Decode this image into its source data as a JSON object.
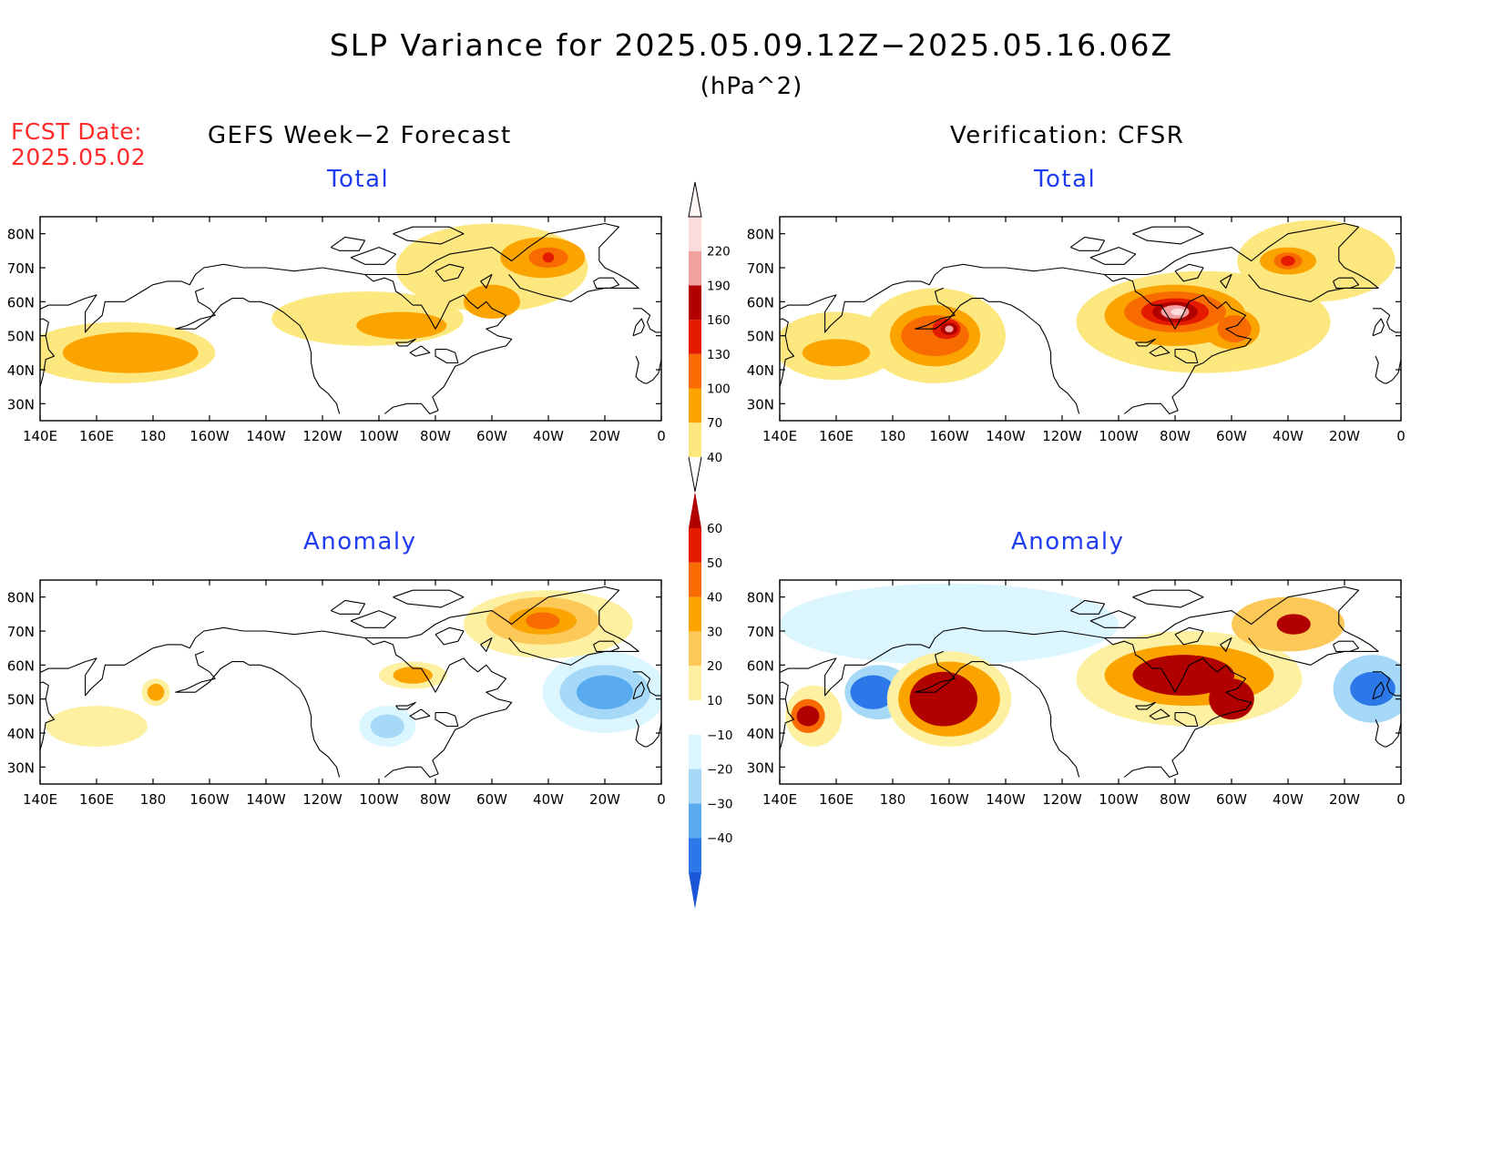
{
  "title": "SLP Variance for 2025.05.09.12Z−2025.05.16.06Z",
  "units": "(hPa^2)",
  "fcst_label": "FCST Date:",
  "fcst_date": "2025.05.02",
  "left_column_title": "GEFS Week−2 Forecast",
  "right_column_title": "Verification: CFSR",
  "panels": [
    {
      "id": "gefs-total",
      "title": "Total"
    },
    {
      "id": "cfsr-total",
      "title": "Total"
    },
    {
      "id": "gefs-anomaly",
      "title": "Anomaly"
    },
    {
      "id": "cfsr-anomaly",
      "title": "Anomaly"
    }
  ],
  "lon_ticks": [
    "140E",
    "160E",
    "180",
    "160W",
    "140W",
    "120W",
    "100W",
    "80W",
    "60W",
    "40W",
    "20W",
    "0"
  ],
  "lat_ticks": [
    "80N",
    "70N",
    "60N",
    "50N",
    "40N",
    "30N"
  ],
  "lon_values": [
    140,
    160,
    180,
    200,
    220,
    240,
    260,
    280,
    300,
    320,
    340,
    360
  ],
  "lat_values": [
    80,
    70,
    60,
    50,
    40,
    30
  ],
  "lon_range": [
    140,
    360
  ],
  "lat_range": [
    25,
    85
  ],
  "total_colorbar": {
    "labels": [
      "40",
      "70",
      "100",
      "130",
      "160",
      "190",
      "220"
    ],
    "colors": [
      "#fde880",
      "#fba400",
      "#f76b00",
      "#e51b00",
      "#b10000",
      "#f2a0a0",
      "#fbdcdc"
    ]
  },
  "anomaly_colorbar": {
    "labels": [
      "60",
      "50",
      "40",
      "30",
      "20",
      "10",
      "−10",
      "−20",
      "−30",
      "−40"
    ],
    "colors": [
      "#b10000",
      "#e51b00",
      "#f76b00",
      "#fba400",
      "#fcc858",
      "#fdf0a0",
      "#ffffff",
      "#dcf6ff",
      "#a6d9f8",
      "#5aaaf0",
      "#2d78e8",
      "#1a56d8"
    ]
  },
  "fields": {
    "gefs-total": [
      {
        "lon": 168,
        "lat": 45,
        "rx": 34,
        "ry": 9,
        "level": 0
      },
      {
        "lon": 172,
        "lat": 45,
        "rx": 24,
        "ry": 6,
        "level": 1
      },
      {
        "lon": 256,
        "lat": 55,
        "rx": 34,
        "ry": 8,
        "level": 0
      },
      {
        "lon": 300,
        "lat": 70,
        "rx": 34,
        "ry": 13,
        "level": 0
      },
      {
        "lon": 268,
        "lat": 53,
        "rx": 16,
        "ry": 4,
        "level": 1
      },
      {
        "lon": 300,
        "lat": 60,
        "rx": 10,
        "ry": 5,
        "level": 1
      },
      {
        "lon": 318,
        "lat": 73,
        "rx": 15,
        "ry": 6,
        "level": 1
      },
      {
        "lon": 320,
        "lat": 73,
        "rx": 7,
        "ry": 3,
        "level": 2
      },
      {
        "lon": 320,
        "lat": 73,
        "rx": 2,
        "ry": 1.5,
        "level": 3
      }
    ],
    "cfsr-total": [
      {
        "lon": 160,
        "lat": 47,
        "rx": 22,
        "ry": 10,
        "level": 0
      },
      {
        "lon": 195,
        "lat": 50,
        "rx": 25,
        "ry": 14,
        "level": 0
      },
      {
        "lon": 290,
        "lat": 54,
        "rx": 45,
        "ry": 15,
        "level": 0
      },
      {
        "lon": 330,
        "lat": 72,
        "rx": 28,
        "ry": 12,
        "level": 0
      },
      {
        "lon": 160,
        "lat": 45,
        "rx": 12,
        "ry": 4,
        "level": 1
      },
      {
        "lon": 195,
        "lat": 50,
        "rx": 16,
        "ry": 9,
        "level": 1
      },
      {
        "lon": 280,
        "lat": 56,
        "rx": 25,
        "ry": 9,
        "level": 1
      },
      {
        "lon": 300,
        "lat": 52,
        "rx": 10,
        "ry": 6,
        "level": 1
      },
      {
        "lon": 320,
        "lat": 72,
        "rx": 10,
        "ry": 4,
        "level": 1
      },
      {
        "lon": 195,
        "lat": 50,
        "rx": 12,
        "ry": 6,
        "level": 2
      },
      {
        "lon": 280,
        "lat": 57,
        "rx": 18,
        "ry": 6,
        "level": 2
      },
      {
        "lon": 301,
        "lat": 52,
        "rx": 6,
        "ry": 4,
        "level": 2
      },
      {
        "lon": 320,
        "lat": 72,
        "rx": 5,
        "ry": 2.5,
        "level": 2
      },
      {
        "lon": 199,
        "lat": 52,
        "rx": 5,
        "ry": 3,
        "level": 3
      },
      {
        "lon": 280,
        "lat": 57,
        "rx": 12,
        "ry": 4,
        "level": 3
      },
      {
        "lon": 320,
        "lat": 72,
        "rx": 2.5,
        "ry": 1.5,
        "level": 3
      },
      {
        "lon": 200,
        "lat": 52,
        "rx": 3,
        "ry": 1.8,
        "level": 4
      },
      {
        "lon": 280,
        "lat": 57,
        "rx": 8,
        "ry": 3,
        "level": 4
      },
      {
        "lon": 200,
        "lat": 52,
        "rx": 1.5,
        "ry": 1,
        "level": 5
      },
      {
        "lon": 280,
        "lat": 57,
        "rx": 5,
        "ry": 2,
        "level": 5
      },
      {
        "lon": 281,
        "lat": 57,
        "rx": 2.5,
        "ry": 1,
        "level": 6
      }
    ],
    "gefs-anomaly": [
      {
        "lon": 200,
        "lat": 72,
        "rx": 60,
        "ry": 12,
        "level": 6
      },
      {
        "lon": 340,
        "lat": 52,
        "rx": 22,
        "ry": 12,
        "level": 7
      },
      {
        "lon": 340,
        "lat": 52,
        "rx": 16,
        "ry": 8,
        "level": 8
      },
      {
        "lon": 340,
        "lat": 52,
        "rx": 10,
        "ry": 5,
        "level": 9
      },
      {
        "lon": 263,
        "lat": 42,
        "rx": 10,
        "ry": 6,
        "level": 7
      },
      {
        "lon": 263,
        "lat": 42,
        "rx": 6,
        "ry": 3.5,
        "level": 8
      },
      {
        "lon": 160,
        "lat": 42,
        "rx": 18,
        "ry": 6,
        "level": 5
      },
      {
        "lon": 320,
        "lat": 72,
        "rx": 30,
        "ry": 10,
        "level": 5
      },
      {
        "lon": 318,
        "lat": 73,
        "rx": 20,
        "ry": 7,
        "level": 4
      },
      {
        "lon": 318,
        "lat": 73,
        "rx": 12,
        "ry": 4,
        "level": 3
      },
      {
        "lon": 318,
        "lat": 73,
        "rx": 6,
        "ry": 2.5,
        "level": 2
      },
      {
        "lon": 181,
        "lat": 52,
        "rx": 5,
        "ry": 4,
        "level": 5
      },
      {
        "lon": 181,
        "lat": 52,
        "rx": 3,
        "ry": 2.5,
        "level": 3
      },
      {
        "lon": 272,
        "lat": 57,
        "rx": 12,
        "ry": 4,
        "level": 5
      },
      {
        "lon": 272,
        "lat": 57,
        "rx": 7,
        "ry": 2.5,
        "level": 3
      }
    ],
    "cfsr-anomaly": [
      {
        "lon": 200,
        "lat": 72,
        "rx": 60,
        "ry": 12,
        "level": 7
      },
      {
        "lon": 175,
        "lat": 52,
        "rx": 12,
        "ry": 8,
        "level": 8
      },
      {
        "lon": 173,
        "lat": 52,
        "rx": 8,
        "ry": 5,
        "level": 10
      },
      {
        "lon": 350,
        "lat": 53,
        "rx": 14,
        "ry": 10,
        "level": 8
      },
      {
        "lon": 350,
        "lat": 53,
        "rx": 8,
        "ry": 5,
        "level": 10
      },
      {
        "lon": 152,
        "lat": 45,
        "rx": 10,
        "ry": 9,
        "level": 5
      },
      {
        "lon": 150,
        "lat": 45,
        "rx": 6,
        "ry": 5,
        "level": 2
      },
      {
        "lon": 150,
        "lat": 45,
        "rx": 4,
        "ry": 3,
        "level": 0
      },
      {
        "lon": 200,
        "lat": 50,
        "rx": 22,
        "ry": 14,
        "level": 5
      },
      {
        "lon": 200,
        "lat": 50,
        "rx": 18,
        "ry": 11,
        "level": 3
      },
      {
        "lon": 198,
        "lat": 50,
        "rx": 12,
        "ry": 8,
        "level": 0
      },
      {
        "lon": 285,
        "lat": 56,
        "rx": 40,
        "ry": 14,
        "level": 5
      },
      {
        "lon": 285,
        "lat": 57,
        "rx": 30,
        "ry": 9,
        "level": 3
      },
      {
        "lon": 283,
        "lat": 57,
        "rx": 18,
        "ry": 6,
        "level": 0
      },
      {
        "lon": 300,
        "lat": 50,
        "rx": 8,
        "ry": 6,
        "level": 0
      },
      {
        "lon": 320,
        "lat": 72,
        "rx": 20,
        "ry": 8,
        "level": 4
      },
      {
        "lon": 322,
        "lat": 72,
        "rx": 6,
        "ry": 3,
        "level": 0
      }
    ]
  },
  "coast_lines": [
    [
      [
        140,
        35
      ],
      [
        141,
        38
      ],
      [
        142,
        43
      ],
      [
        145,
        44
      ],
      [
        143,
        46
      ],
      [
        142,
        50
      ],
      [
        143,
        54
      ],
      [
        141,
        55
      ],
      [
        137,
        54
      ],
      [
        138,
        57
      ],
      [
        143,
        59
      ],
      [
        150,
        59
      ],
      [
        156,
        61
      ],
      [
        160,
        62
      ],
      [
        156,
        57
      ],
      [
        156,
        51
      ],
      [
        158,
        53
      ],
      [
        162,
        56
      ],
      [
        163,
        60
      ],
      [
        170,
        60
      ],
      [
        174,
        62
      ],
      [
        178,
        64
      ],
      [
        180,
        65
      ],
      [
        185,
        66
      ],
      [
        190,
        66
      ],
      [
        193,
        65
      ],
      [
        195,
        68
      ],
      [
        198,
        70
      ],
      [
        205,
        71
      ],
      [
        212,
        70
      ],
      [
        220,
        70
      ],
      [
        230,
        69
      ],
      [
        240,
        70
      ],
      [
        255,
        68
      ],
      [
        270,
        68
      ],
      [
        275,
        69
      ],
      [
        280,
        72
      ],
      [
        285,
        74
      ],
      [
        300,
        76
      ],
      [
        307,
        72
      ],
      [
        313,
        76
      ],
      [
        320,
        80
      ],
      [
        340,
        83
      ],
      [
        345,
        82
      ],
      [
        338,
        76
      ],
      [
        338,
        72
      ],
      [
        340,
        70
      ],
      [
        345,
        68
      ],
      [
        349,
        66
      ],
      [
        352,
        64
      ],
      [
        340,
        64
      ],
      [
        334,
        63
      ],
      [
        328,
        60
      ],
      [
        318,
        62
      ],
      [
        310,
        64
      ],
      [
        306,
        68
      ]
    ],
    [
      [
        198,
        64
      ],
      [
        195,
        63
      ],
      [
        196,
        60
      ],
      [
        200,
        58
      ],
      [
        202,
        56
      ],
      [
        197,
        55
      ],
      [
        192,
        53
      ],
      [
        188,
        52
      ],
      [
        195,
        52
      ],
      [
        200,
        55
      ],
      [
        204,
        59
      ],
      [
        208,
        61
      ],
      [
        212,
        61
      ],
      [
        214,
        60
      ],
      [
        218,
        60
      ],
      [
        222,
        59
      ],
      [
        226,
        57
      ],
      [
        229,
        55
      ],
      [
        232,
        53
      ],
      [
        234,
        50
      ],
      [
        235,
        48
      ],
      [
        236,
        45
      ],
      [
        236,
        42
      ],
      [
        237,
        38
      ],
      [
        239,
        35
      ],
      [
        242,
        33
      ],
      [
        245,
        30
      ],
      [
        246,
        27
      ]
    ],
    [
      [
        262,
        27
      ],
      [
        265,
        29
      ],
      [
        270,
        30
      ],
      [
        275,
        30
      ],
      [
        278,
        27
      ],
      [
        281,
        28
      ],
      [
        279,
        32
      ],
      [
        283,
        35
      ],
      [
        285,
        38
      ],
      [
        287,
        41
      ],
      [
        290,
        42
      ],
      [
        293,
        44
      ],
      [
        296,
        45
      ],
      [
        300,
        46
      ],
      [
        305,
        47
      ],
      [
        307,
        49
      ],
      [
        302,
        50
      ],
      [
        298,
        52
      ],
      [
        302,
        53
      ],
      [
        305,
        56
      ],
      [
        300,
        58
      ],
      [
        298,
        60
      ],
      [
        295,
        58
      ],
      [
        292,
        60
      ],
      [
        290,
        62
      ],
      [
        285,
        60
      ],
      [
        282,
        55
      ],
      [
        280,
        52
      ],
      [
        278,
        55
      ],
      [
        275,
        59
      ],
      [
        272,
        59
      ],
      [
        268,
        62
      ],
      [
        266,
        63
      ],
      [
        265,
        66
      ],
      [
        262,
        67
      ],
      [
        258,
        66
      ],
      [
        255,
        68
      ]
    ],
    [
      [
        350,
        58
      ],
      [
        353,
        58
      ],
      [
        356,
        56
      ],
      [
        355,
        54
      ],
      [
        356,
        52
      ],
      [
        358,
        51
      ],
      [
        360,
        51
      ]
    ],
    [
      [
        350,
        50
      ],
      [
        351,
        53
      ],
      [
        353,
        55
      ],
      [
        354,
        53
      ],
      [
        353,
        51
      ],
      [
        350,
        50
      ]
    ],
    [
      [
        351,
        44
      ],
      [
        352,
        42
      ],
      [
        351,
        38
      ],
      [
        352,
        37
      ],
      [
        354,
        36
      ],
      [
        355,
        36
      ],
      [
        357,
        37
      ],
      [
        359,
        39
      ],
      [
        360,
        43
      ]
    ],
    [
      [
        336,
        66
      ],
      [
        338,
        67
      ],
      [
        343,
        67
      ],
      [
        345,
        65
      ],
      [
        342,
        64
      ],
      [
        337,
        64
      ],
      [
        336,
        66
      ]
    ],
    [
      [
        280,
        46
      ],
      [
        284,
        46
      ],
      [
        287,
        45
      ],
      [
        288,
        42
      ],
      [
        284,
        42
      ],
      [
        280,
        44
      ],
      [
        280,
        46
      ]
    ],
    [
      [
        275,
        47
      ],
      [
        278,
        45
      ],
      [
        273,
        44
      ],
      [
        271,
        45
      ],
      [
        275,
        47
      ]
    ],
    [
      [
        266,
        48
      ],
      [
        270,
        48
      ],
      [
        273,
        49
      ],
      [
        270,
        47
      ],
      [
        267,
        47
      ],
      [
        266,
        48
      ]
    ],
    [
      [
        250,
        73
      ],
      [
        260,
        76
      ],
      [
        266,
        74
      ],
      [
        262,
        71
      ],
      [
        255,
        71
      ],
      [
        250,
        73
      ]
    ],
    [
      [
        265,
        80
      ],
      [
        272,
        82
      ],
      [
        285,
        82
      ],
      [
        290,
        80
      ],
      [
        282,
        77
      ],
      [
        270,
        78
      ],
      [
        265,
        80
      ]
    ],
    [
      [
        243,
        76
      ],
      [
        248,
        79
      ],
      [
        255,
        78
      ],
      [
        253,
        75
      ],
      [
        246,
        75
      ],
      [
        243,
        76
      ]
    ],
    [
      [
        280,
        69
      ],
      [
        285,
        71
      ],
      [
        290,
        70
      ],
      [
        288,
        67
      ],
      [
        283,
        66
      ],
      [
        280,
        69
      ]
    ],
    [
      [
        296,
        66
      ],
      [
        300,
        68
      ],
      [
        298,
        64
      ],
      [
        296,
        66
      ]
    ]
  ]
}
